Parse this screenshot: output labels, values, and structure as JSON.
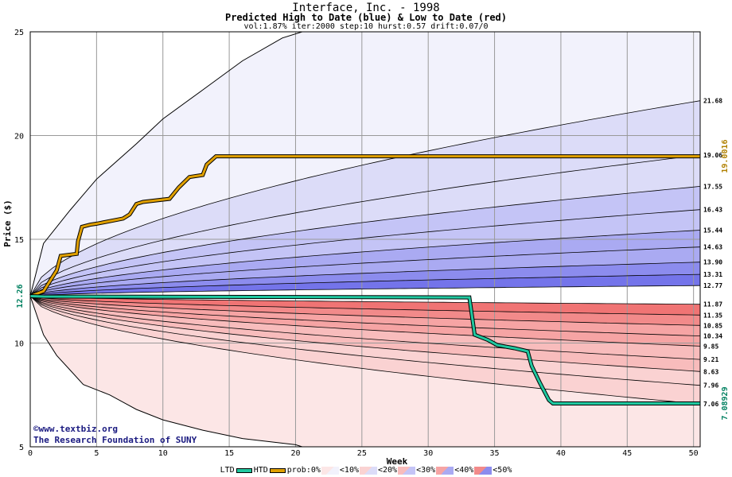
{
  "title": "Interface, Inc. - 1998",
  "subtitle": "Predicted High to Date (blue) &  Low to Date (red)",
  "params": "vol:1.87% iter:2000 step:10 hurst:0.57 drift:0.07/0",
  "credit_line1": "©www.textbiz.org",
  "credit_line2": "The Research Foundation of SUNY",
  "legend": {
    "ltd": "LTD",
    "htd": "HTD",
    "prob": "prob:0%",
    "levels": [
      "<10%",
      "<20%",
      "<30%",
      "<40%",
      "<50%"
    ]
  },
  "colors": {
    "htd_line": "#e0a000",
    "ltd_line": "#20c8a0",
    "blue_bands": [
      "#f2f2fc",
      "#dcdcf8",
      "#c4c4f6",
      "#aaaaf2",
      "#8c8cee",
      "#7474ea"
    ],
    "red_bands": [
      "#fce6e6",
      "#fad2d2",
      "#f8bcbc",
      "#f6a4a4",
      "#f28a8a",
      "#f07474"
    ]
  },
  "chart_data": {
    "type": "area",
    "xlabel": "Week",
    "ylabel": "Price ($)",
    "xlim": [
      0,
      50.5
    ],
    "ylim": [
      5,
      25
    ],
    "xticks": [
      0,
      5,
      10,
      15,
      20,
      25,
      30,
      35,
      40,
      45,
      50
    ],
    "yticks": [
      5,
      10,
      15,
      20,
      25
    ],
    "grid": true,
    "start_price": 12.26,
    "start_label": "12.26",
    "high_band_endpoints": [
      12.77,
      13.31,
      13.9,
      14.63,
      15.44,
      16.43,
      17.55,
      19.06,
      21.68
    ],
    "low_band_endpoints": [
      11.87,
      11.35,
      10.85,
      10.34,
      9.85,
      9.21,
      8.63,
      7.96,
      7.06
    ],
    "end_labels": [
      "21.68",
      "19.06",
      "17.55",
      "16.43",
      "15.44",
      "14.63",
      "13.90",
      "13.31",
      "12.77",
      "11.87",
      "11.35",
      "10.85",
      "10.34",
      "9.85",
      "9.21",
      "8.63",
      "7.96",
      "7.06"
    ],
    "htd_final": 19.0016,
    "htd_final_label": "19.0016",
    "ltd_final": 7.08929,
    "ltd_final_label": "7.08929",
    "envelope_upper": [
      [
        0,
        12.26
      ],
      [
        1,
        14.8
      ],
      [
        3,
        16.4
      ],
      [
        5,
        17.9
      ],
      [
        8,
        19.6
      ],
      [
        10,
        20.8
      ],
      [
        13,
        22.2
      ],
      [
        16,
        23.6
      ],
      [
        19,
        24.7
      ],
      [
        20.5,
        25
      ]
    ],
    "envelope_lower": [
      [
        0,
        12.26
      ],
      [
        1,
        10.4
      ],
      [
        2,
        9.4
      ],
      [
        3,
        8.7
      ],
      [
        4,
        8.0
      ],
      [
        6,
        7.5
      ],
      [
        8,
        6.8
      ],
      [
        10,
        6.3
      ],
      [
        13,
        5.8
      ],
      [
        16,
        5.4
      ],
      [
        20,
        5.1
      ],
      [
        20.5,
        5.0
      ]
    ],
    "high_to_date": [
      [
        0,
        12.26
      ],
      [
        1,
        12.5
      ],
      [
        1.3,
        12.8
      ],
      [
        2,
        13.5
      ],
      [
        2.3,
        14.2
      ],
      [
        3.5,
        14.3
      ],
      [
        3.6,
        14.9
      ],
      [
        3.9,
        15.6
      ],
      [
        4.5,
        15.7
      ],
      [
        5,
        15.75
      ],
      [
        7,
        16.0
      ],
      [
        7.5,
        16.2
      ],
      [
        8,
        16.7
      ],
      [
        8.5,
        16.8
      ],
      [
        10.5,
        16.95
      ],
      [
        11.2,
        17.5
      ],
      [
        12,
        18.0
      ],
      [
        13,
        18.1
      ],
      [
        13.3,
        18.6
      ],
      [
        14,
        19.0016
      ],
      [
        50.5,
        19.0016
      ]
    ],
    "low_to_date": [
      [
        0,
        12.26
      ],
      [
        1,
        12.24
      ],
      [
        33.1,
        12.2
      ],
      [
        33.5,
        10.4
      ],
      [
        34.5,
        10.15
      ],
      [
        35.2,
        9.9
      ],
      [
        36.5,
        9.75
      ],
      [
        37.5,
        9.6
      ],
      [
        37.8,
        8.9
      ],
      [
        38.4,
        8.1
      ],
      [
        39.1,
        7.25
      ],
      [
        39.4,
        7.08929
      ],
      [
        50.5,
        7.08929
      ]
    ]
  }
}
